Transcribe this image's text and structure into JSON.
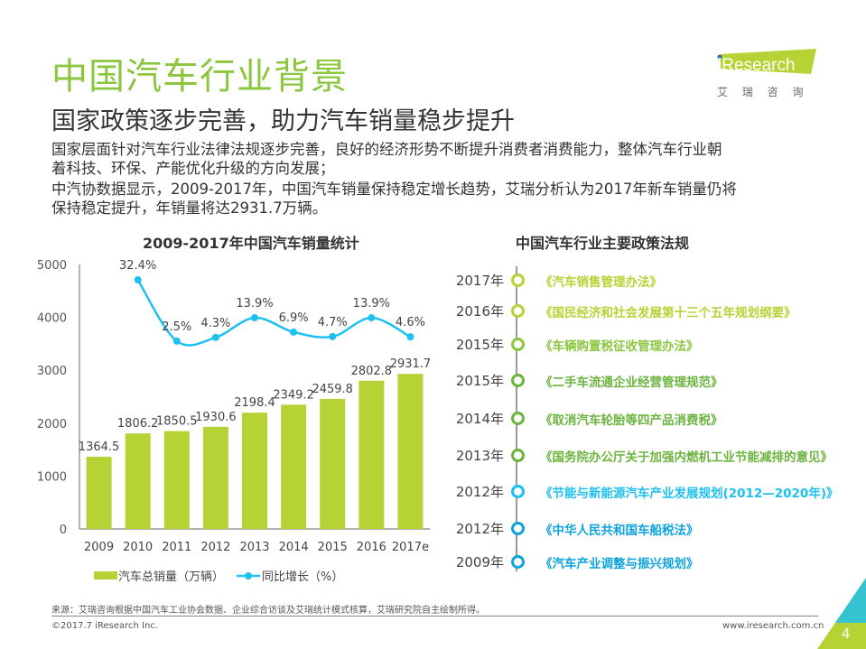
{
  "header": {
    "title": "中国汽车行业背景",
    "subtitle": "国家政策逐步完善，助力汽车销量稳步提升",
    "paragraphs": [
      "国家层面针对汽车行业法律法规逐步完善，良好的经济形势不断提升消费者消费能力，整体汽车行业朝",
      "着科技、环保、产能优化升级的方向发展；",
      "中汽协数据显示，2009-2017年，中国汽车销量保持稳定增长趋势，艾瑞分析认为2017年新车销量仍将",
      "保持稳定提升，年销量将达2931.7万辆。"
    ]
  },
  "logo": {
    "text": "iResearch",
    "sub": "艾 瑞 咨 询",
    "color": "#b5d334",
    "dot_color": "#2a6ebb"
  },
  "chart_data": {
    "type": "bar+line",
    "title": "2009-2017年中国汽车销量统计",
    "categories": [
      "2009",
      "2010",
      "2011",
      "2012",
      "2013",
      "2014",
      "2015",
      "2016",
      "2017e"
    ],
    "ylim": [
      0,
      5000
    ],
    "yticks": [
      "0",
      "1000",
      "2000",
      "3000",
      "4000",
      "5000"
    ],
    "grid": false,
    "legend_position": "bottom",
    "series": [
      {
        "name": "汽车总销量（万辆）",
        "type": "bar",
        "color": "#b5d334",
        "values": [
          1364.5,
          1806.2,
          1850.5,
          1930.6,
          2198.4,
          2349.2,
          2459.8,
          2802.8,
          2931.7
        ],
        "labels": [
          "1364.5",
          "1806.2",
          "1850.5",
          "1930.6",
          "2198.4",
          "2349.2",
          "2459.8",
          "2802.8",
          "2931.7"
        ]
      },
      {
        "name": "同比增长（%）",
        "type": "line",
        "axis": "secondary-hidden",
        "color": "#1ec0ef",
        "values": [
          null,
          32.4,
          2.5,
          4.3,
          13.9,
          6.9,
          4.7,
          13.9,
          4.6
        ],
        "labels": [
          "",
          "32.4%",
          "2.5%",
          "4.3%",
          "13.9%",
          "6.9%",
          "4.7%",
          "13.9%",
          "4.6%"
        ]
      }
    ]
  },
  "policies": {
    "title": "中国汽车行业主要政策法规",
    "items": [
      {
        "year": "2017年",
        "text": "《汽车销售管理办法》",
        "color": "#b5d334"
      },
      {
        "year": "2016年",
        "text": "《国民经济和社会发展第十三个五年规划纲要》",
        "color": "#b5d334"
      },
      {
        "year": "2015年",
        "text": "《车辆购置税征收管理办法》",
        "color": "#8cc63f"
      },
      {
        "year": "2015年",
        "text": "《二手车流通企业经营管理规范》",
        "color": "#6cb33f"
      },
      {
        "year": "2014年",
        "text": "《取消汽车轮胎等四产品消费税》",
        "color": "#6cb33f"
      },
      {
        "year": "2013年",
        "text": "《国务院办公厅关于加强内燃机工业节能减排的意见》",
        "color": "#6cb33f"
      },
      {
        "year": "2012年",
        "text": "《节能与新能源汽车产业发展规划(2012—2020年)》",
        "color": "#1ec0ef"
      },
      {
        "year": "2012年",
        "text": "《中华人民共和国车船税法》",
        "color": "#0fa3dc"
      },
      {
        "year": "2009年",
        "text": "《汽车产业调整与振兴规划》",
        "color": "#0fa3dc"
      }
    ]
  },
  "footer": {
    "source": "来源：艾瑞咨询根据中国汽车工业协会数据、企业综合访谈及艾瑞统计模式核算，艾瑞研究院自主绘制所得。",
    "copyright": "©2017.7 iResearch Inc.",
    "website": "www.iresearch.com.cn",
    "page": "4"
  }
}
